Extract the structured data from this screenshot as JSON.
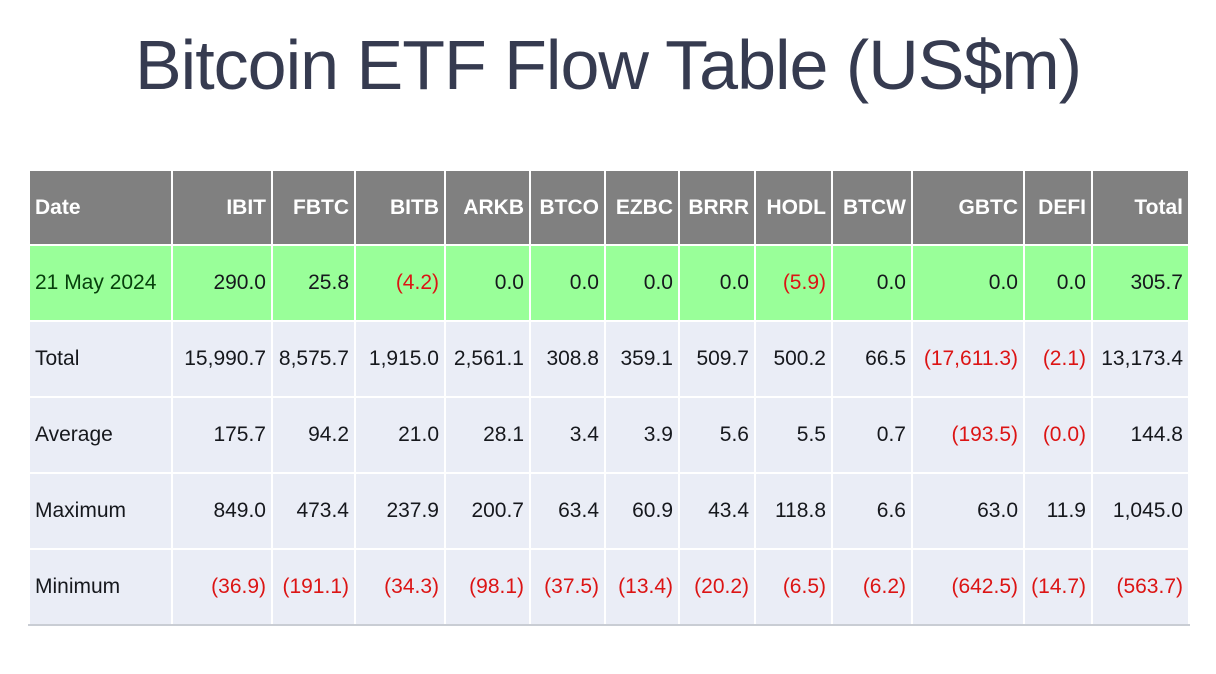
{
  "page": {
    "title": "Bitcoin ETF Flow Table (US$m)"
  },
  "colors": {
    "title_color": "#363b50",
    "header_bg": "#808080",
    "header_text": "#ffffff",
    "highlight_row_bg": "#99ff99",
    "row_bg": "#eaedf6",
    "text_color": "#16181d",
    "date_text_color": "#07400c",
    "negative_color": "#dc1414"
  },
  "table": {
    "columns": [
      "Date",
      "IBIT",
      "FBTC",
      "BITB",
      "ARKB",
      "BTCO",
      "EZBC",
      "BRRR",
      "HODL",
      "BTCW",
      "GBTC",
      "DEFI",
      "Total"
    ],
    "rows": [
      {
        "label": "21 May 2024",
        "highlight": true,
        "values": [
          "290.0",
          "25.8",
          "(4.2)",
          "0.0",
          "0.0",
          "0.0",
          "0.0",
          "(5.9)",
          "0.0",
          "0.0",
          "0.0",
          "305.7"
        ]
      },
      {
        "label": "Total",
        "highlight": false,
        "values": [
          "15,990.7",
          "8,575.7",
          "1,915.0",
          "2,561.1",
          "308.8",
          "359.1",
          "509.7",
          "500.2",
          "66.5",
          "(17,611.3)",
          "(2.1)",
          "13,173.4"
        ]
      },
      {
        "label": "Average",
        "highlight": false,
        "values": [
          "175.7",
          "94.2",
          "21.0",
          "28.1",
          "3.4",
          "3.9",
          "5.6",
          "5.5",
          "0.7",
          "(193.5)",
          "(0.0)",
          "144.8"
        ]
      },
      {
        "label": "Maximum",
        "highlight": false,
        "values": [
          "849.0",
          "473.4",
          "237.9",
          "200.7",
          "63.4",
          "60.9",
          "43.4",
          "118.8",
          "6.6",
          "63.0",
          "11.9",
          "1,045.0"
        ]
      },
      {
        "label": "Minimum",
        "highlight": false,
        "values": [
          "(36.9)",
          "(191.1)",
          "(34.3)",
          "(98.1)",
          "(37.5)",
          "(13.4)",
          "(20.2)",
          "(6.5)",
          "(6.2)",
          "(642.5)",
          "(14.7)",
          "(563.7)"
        ]
      }
    ]
  },
  "chart_data": {
    "type": "table",
    "title": "Bitcoin ETF Flow Table (US$m)",
    "columns": [
      "IBIT",
      "FBTC",
      "BITB",
      "ARKB",
      "BTCO",
      "EZBC",
      "BRRR",
      "HODL",
      "BTCW",
      "GBTC",
      "DEFI",
      "Total"
    ],
    "rows": [
      {
        "label": "21 May 2024",
        "values": [
          290.0,
          25.8,
          -4.2,
          0.0,
          0.0,
          0.0,
          0.0,
          -5.9,
          0.0,
          0.0,
          0.0,
          305.7
        ]
      },
      {
        "label": "Total",
        "values": [
          15990.7,
          8575.7,
          1915.0,
          2561.1,
          308.8,
          359.1,
          509.7,
          500.2,
          66.5,
          -17611.3,
          -2.1,
          13173.4
        ]
      },
      {
        "label": "Average",
        "values": [
          175.7,
          94.2,
          21.0,
          28.1,
          3.4,
          3.9,
          5.6,
          5.5,
          0.7,
          -193.5,
          -0.0,
          144.8
        ]
      },
      {
        "label": "Maximum",
        "values": [
          849.0,
          473.4,
          237.9,
          200.7,
          63.4,
          60.9,
          43.4,
          118.8,
          6.6,
          63.0,
          11.9,
          1045.0
        ]
      },
      {
        "label": "Minimum",
        "values": [
          -36.9,
          -191.1,
          -34.3,
          -98.1,
          -37.5,
          -13.4,
          -20.2,
          -6.5,
          -6.2,
          -642.5,
          -14.7,
          -563.7
        ]
      }
    ],
    "layout_hints": {
      "negative_format": "parentheses, red text",
      "highlight_row": "21 May 2024 (green background)",
      "header": "gray background, white bold text"
    }
  }
}
